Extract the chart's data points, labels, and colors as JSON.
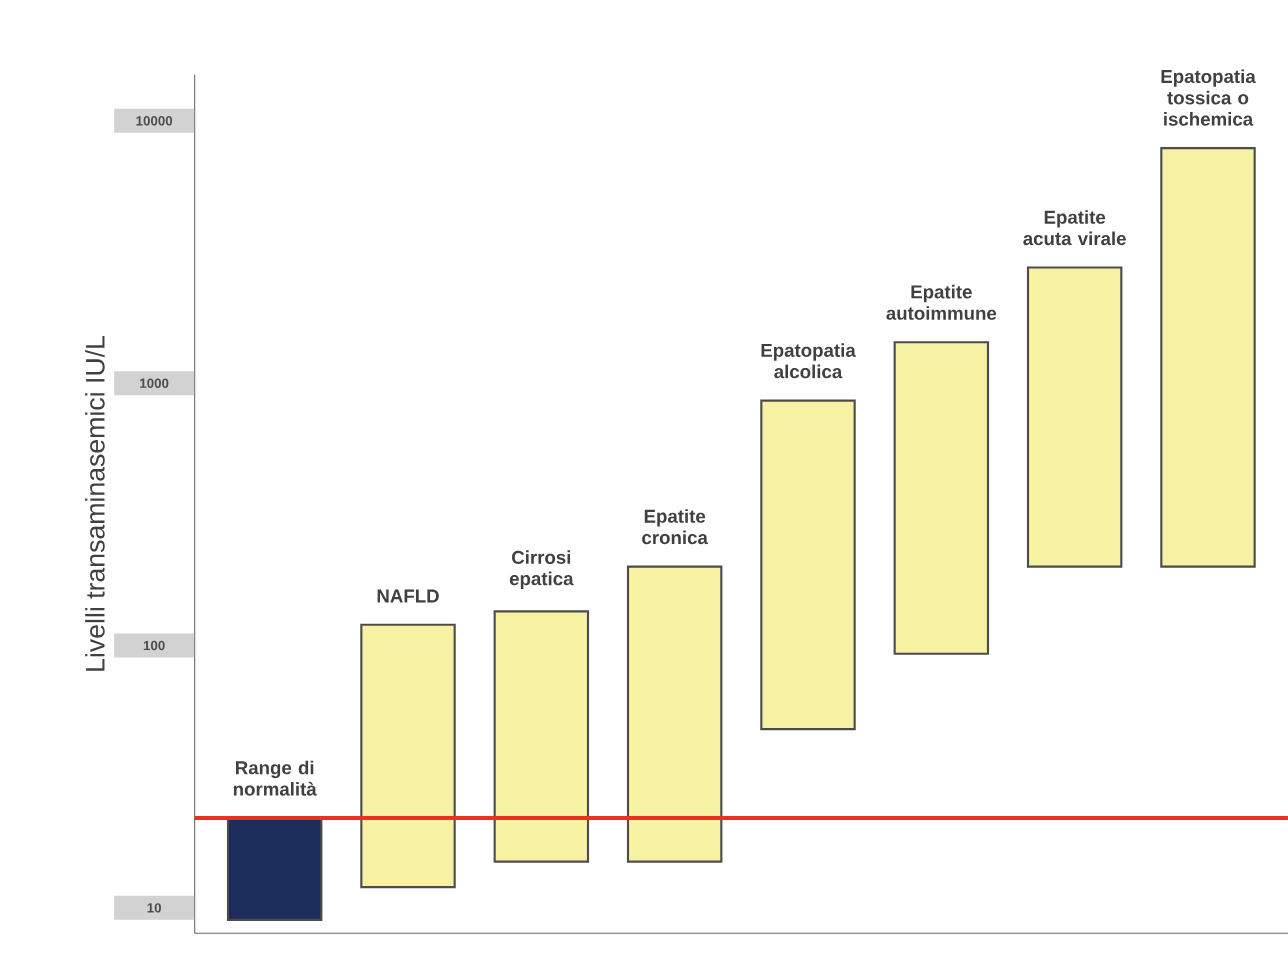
{
  "chart_data": {
    "type": "bar",
    "ylabel": "Livelli transaminasemici  IU/L",
    "categories": [
      "Range di normalità",
      "NAFLD",
      "Cirrosi epatica",
      "Epatite cronica",
      "Epatopatia alcolica",
      "Epatite autoimmune",
      "Epatite acuta virale",
      "Epatopatia tossica o ischemica"
    ],
    "base": [
      9,
      12,
      15,
      15,
      48,
      93,
      200,
      200
    ],
    "values": [
      13,
      108,
      120,
      185,
      810,
      1340,
      2560,
      7670
    ],
    "colors": [
      "#1c2d5c",
      "#f7f1a4",
      "#f7f1a4",
      "#f7f1a4",
      "#f7f1a4",
      "#f7f1a4",
      "#f7f1a4",
      "#f7f1a4"
    ],
    "log": "y",
    "ylim": [
      8,
      15000
    ],
    "yticks": [
      10,
      100,
      1000,
      10000
    ],
    "ref_lines": [
      {
        "axis": "y",
        "value": 22,
        "color": "#e8321e"
      }
    ]
  }
}
